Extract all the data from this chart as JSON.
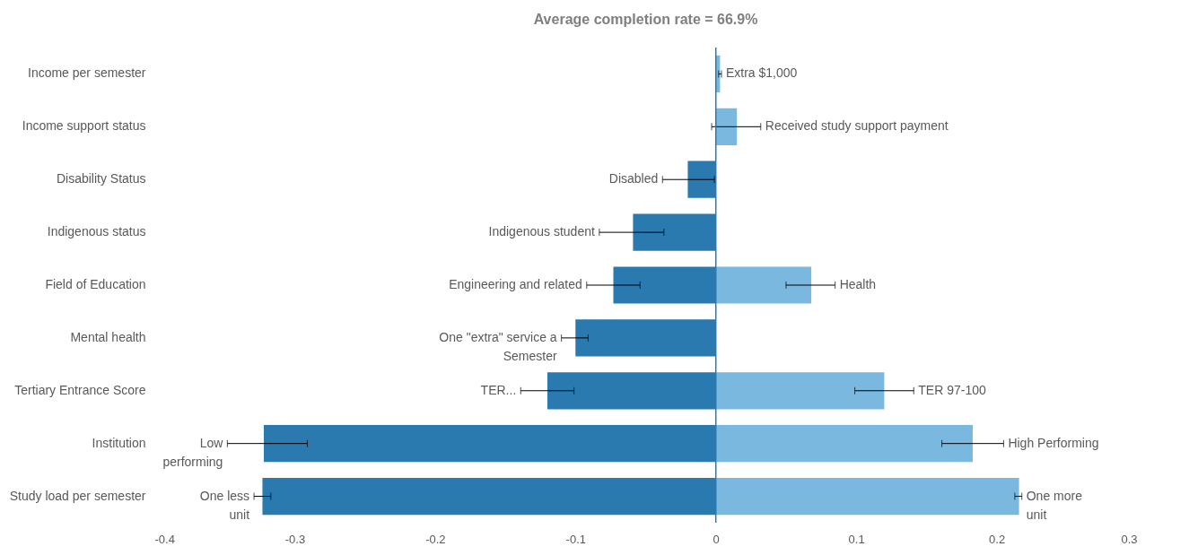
{
  "chart_data": {
    "type": "bar",
    "orientation": "horizontal",
    "title": "Average completion rate = 66.9%",
    "categories": [
      "Income per semester",
      "Income support status",
      "Disability Status",
      "Indigenous status",
      "Field of Education",
      "Mental health",
      "Tertiary Entrance Score",
      "Institution",
      "Study load per semester"
    ],
    "series": [
      {
        "color": "#2a7ab0",
        "values": [
          null,
          null,
          -0.02,
          -0.059,
          -0.073,
          -0.1,
          -0.12,
          -0.322,
          -0.323
        ],
        "errors": [
          null,
          null,
          [
            -0.038,
            -0.001
          ],
          [
            -0.083,
            -0.037
          ],
          [
            -0.092,
            -0.054
          ],
          [
            -0.11,
            -0.091
          ],
          [
            -0.139,
            -0.101
          ],
          [
            -0.348,
            -0.291
          ],
          [
            -0.329,
            -0.317
          ]
        ]
      },
      {
        "color": "#7ab8e0",
        "values": [
          0.003,
          0.015,
          null,
          null,
          0.068,
          null,
          0.12,
          0.183,
          0.216
        ],
        "errors": [
          [
            0.002,
            0.004
          ],
          [
            -0.003,
            0.032
          ],
          null,
          null,
          [
            0.05,
            0.085
          ],
          null,
          [
            0.099,
            0.141
          ],
          [
            0.161,
            0.205
          ],
          [
            0.213,
            0.218
          ]
        ]
      }
    ],
    "xlim": [
      -0.4,
      0.3
    ],
    "xticks": [
      -0.4,
      -0.3,
      -0.2,
      -0.1,
      0,
      0.1,
      0.2,
      0.3
    ],
    "grid": false,
    "ref_lines": [
      {
        "axis": "x",
        "value": 0,
        "color": "#2a7ab0"
      }
    ],
    "annotations": [
      {
        "text": "Extra $1,000",
        "x": 0.004,
        "y": "Income per semester"
      },
      {
        "text": "Received study support payment",
        "x": 0.032,
        "y": "Income support status"
      },
      {
        "text": "Disabled",
        "x": -0.038,
        "y": "Disability Status"
      },
      {
        "text": "Indigenous student",
        "x": -0.083,
        "y": "Indigenous status"
      },
      {
        "text": "Engineering and related",
        "x": -0.092,
        "y": "Field of Education"
      },
      {
        "text": "Health",
        "x": 0.085,
        "y": "Field of Education"
      },
      {
        "text": "One \"extra\" service a\nSemester",
        "x": -0.11,
        "y": "Mental health"
      },
      {
        "text": "TER...",
        "x": -0.139,
        "y": "Tertiary Entrance Score"
      },
      {
        "text": "TER 97-100",
        "x": 0.141,
        "y": "Tertiary Entrance Score"
      },
      {
        "text": "Low\nperforming",
        "x": -0.348,
        "y": "Institution"
      },
      {
        "text": "High Performing",
        "x": 0.205,
        "y": "Institution"
      },
      {
        "text": "One less\nunit",
        "x": -0.329,
        "y": "Study load per semester"
      },
      {
        "text": "One more\nunit",
        "x": 0.218,
        "y": "Study load per semester"
      }
    ]
  }
}
